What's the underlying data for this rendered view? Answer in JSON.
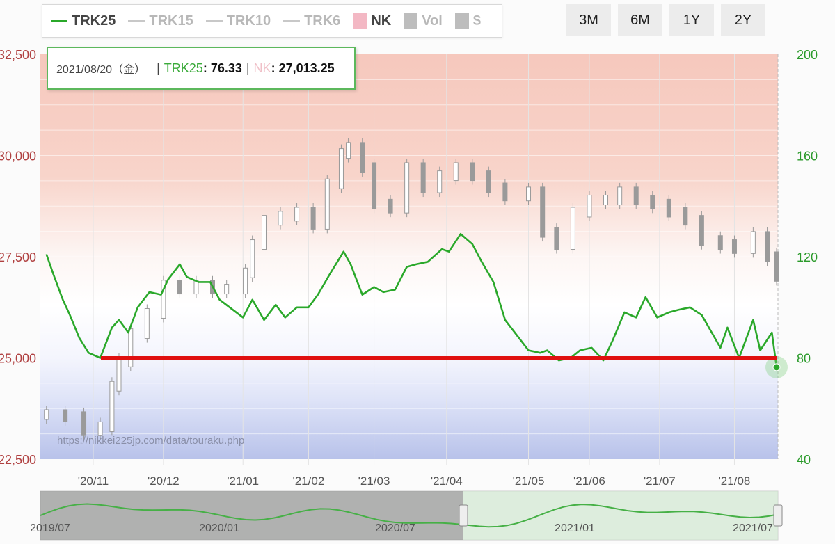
{
  "legend": [
    {
      "label": "TRK25",
      "kind": "line",
      "active": true
    },
    {
      "label": "TRK15",
      "kind": "line",
      "active": false
    },
    {
      "label": "TRK10",
      "kind": "line",
      "active": false
    },
    {
      "label": "TRK6",
      "kind": "line",
      "active": false
    },
    {
      "label": "NK",
      "kind": "box",
      "active": true
    },
    {
      "label": "Vol",
      "kind": "box",
      "active": false
    },
    {
      "label": "$",
      "kind": "box",
      "active": false
    }
  ],
  "range_buttons": [
    "3M",
    "6M",
    "1Y",
    "2Y"
  ],
  "tooltip": {
    "date": "2021/08/20（金）",
    "sep": "|",
    "trk_label": "TRK25",
    "trk_value": "76.33",
    "nk_label": "NK",
    "nk_value": "27,013.25"
  },
  "watermark": "https://nikkei225jp.com/data/touraku.php",
  "colors": {
    "trk_line": "#2aa82a",
    "reference_line": "#e01010",
    "left_axis_text": "#b04040",
    "right_axis_text": "#2a9a2a",
    "candle": "#9a9a9a",
    "navigator_line": "#46b046"
  },
  "chart_data": {
    "type": "line",
    "left_axis": {
      "label": "NK",
      "ticks": [
        "32,500",
        "30,000",
        "27,500",
        "25,000",
        "22,500"
      ],
      "range": [
        22500,
        32500
      ]
    },
    "right_axis": {
      "label": "TRK25",
      "ticks": [
        "200",
        "160",
        "120",
        "80",
        "40"
      ],
      "range": [
        40,
        200
      ]
    },
    "x_ticks": [
      "'20/11",
      "'20/12",
      "'21/01",
      "'21/02",
      "'21/03",
      "'21/04",
      "'21/05",
      "'21/06",
      "'21/07",
      "'21/08"
    ],
    "reference_line": {
      "axis": "right",
      "value": 80
    },
    "series": [
      {
        "name": "TRK25",
        "axis": "right",
        "x": [
          "2020/10/12",
          "2020/10/15",
          "2020/10/19",
          "2020/10/22",
          "2020/10/26",
          "2020/10/30",
          "2020/11/04",
          "2020/11/09",
          "2020/11/12",
          "2020/11/16",
          "2020/11/20",
          "2020/11/25",
          "2020/11/30",
          "2020/12/03",
          "2020/12/08",
          "2020/12/11",
          "2020/12/16",
          "2020/12/21",
          "2020/12/25",
          "2021/01/04",
          "2021/01/08",
          "2021/01/13",
          "2021/01/18",
          "2021/01/22",
          "2021/01/27",
          "2021/02/01",
          "2021/02/05",
          "2021/02/10",
          "2021/02/16",
          "2021/02/19",
          "2021/02/24",
          "2021/03/01",
          "2021/03/05",
          "2021/03/10",
          "2021/03/15",
          "2021/03/19",
          "2021/03/24",
          "2021/03/30",
          "2021/04/02",
          "2021/04/07",
          "2021/04/12",
          "2021/04/16",
          "2021/04/21",
          "2021/04/26",
          "2021/05/06",
          "2021/05/11",
          "2021/05/14",
          "2021/05/19",
          "2021/05/24",
          "2021/05/28",
          "2021/06/02",
          "2021/06/07",
          "2021/06/11",
          "2021/06/16",
          "2021/06/21",
          "2021/06/25",
          "2021/06/30",
          "2021/07/05",
          "2021/07/09",
          "2021/07/14",
          "2021/07/19",
          "2021/07/27",
          "2021/07/30",
          "2021/08/04",
          "2021/08/10",
          "2021/08/13",
          "2021/08/18",
          "2021/08/20"
        ],
        "values": [
          121,
          113,
          103,
          97,
          88,
          82,
          80,
          92,
          95,
          90,
          100,
          106,
          105,
          111,
          117,
          112,
          110,
          110,
          103,
          96,
          103,
          95,
          101,
          96,
          100,
          100,
          105,
          113,
          122,
          117,
          105,
          108,
          106,
          107,
          116,
          117,
          118,
          123,
          122,
          129,
          125,
          118,
          110,
          95,
          83,
          82,
          83,
          79,
          80,
          83,
          84,
          79,
          87,
          98,
          96,
          104,
          96,
          98,
          99,
          100,
          97,
          84,
          92,
          80,
          95,
          83,
          90,
          76.33
        ]
      },
      {
        "name": "NK",
        "axis": "left",
        "x": [
          "2020/10/12",
          "2020/10/20",
          "2020/10/28",
          "2020/11/04",
          "2020/11/09",
          "2020/11/12",
          "2020/11/17",
          "2020/11/24",
          "2020/12/01",
          "2020/12/08",
          "2020/12/15",
          "2020/12/22",
          "2020/12/28",
          "2021/01/05",
          "2021/01/08",
          "2021/01/13",
          "2021/01/20",
          "2021/01/27",
          "2021/02/03",
          "2021/02/09",
          "2021/02/15",
          "2021/02/18",
          "2021/02/24",
          "2021/03/01",
          "2021/03/08",
          "2021/03/15",
          "2021/03/22",
          "2021/03/29",
          "2021/04/05",
          "2021/04/12",
          "2021/04/19",
          "2021/04/26",
          "2021/05/06",
          "2021/05/12",
          "2021/05/18",
          "2021/05/25",
          "2021/06/01",
          "2021/06/08",
          "2021/06/14",
          "2021/06/21",
          "2021/06/28",
          "2021/07/05",
          "2021/07/12",
          "2021/07/19",
          "2021/07/27",
          "2021/08/02",
          "2021/08/10",
          "2021/08/16",
          "2021/08/20"
        ],
        "values": [
          23600,
          23550,
          23200,
          23300,
          24300,
          24900,
          25600,
          26100,
          26800,
          26700,
          26800,
          26700,
          26700,
          27100,
          27800,
          28400,
          28500,
          28600,
          28300,
          29300,
          30050,
          30200,
          29700,
          28800,
          28700,
          29700,
          29200,
          29500,
          29700,
          29500,
          29200,
          29000,
          29100,
          28100,
          27800,
          28600,
          28900,
          28900,
          29100,
          28900,
          28800,
          28600,
          28400,
          27900,
          27800,
          27700,
          28000,
          27500,
          27013.25
        ]
      }
    ],
    "navigator": {
      "x_ticks": [
        "2019/07",
        "2020/01",
        "2020/07",
        "2021/01",
        "2021/07"
      ]
    }
  }
}
